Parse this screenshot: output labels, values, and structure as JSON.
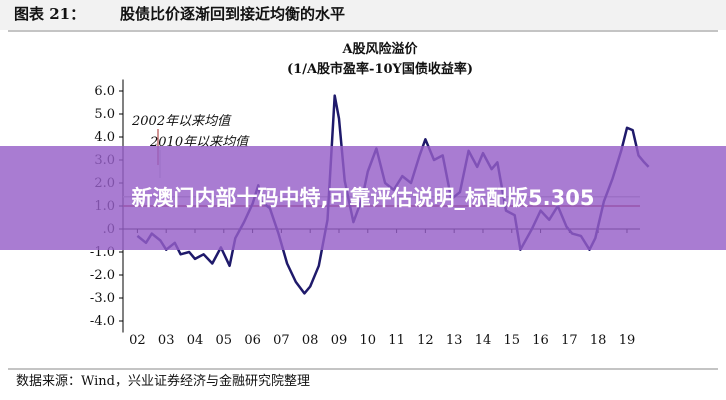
{
  "header": {
    "figure_label": "图表 21：",
    "figure_title": "股债比价逐渐回到接近均衡的水平"
  },
  "footer": {
    "source": "数据来源：Wind，兴业证券经济与金融研究院整理"
  },
  "overlay": {
    "text": "新澳门内部十码中特,可靠评估说明_标配版5.305"
  },
  "chart_data": {
    "type": "line",
    "title": "A股风险溢价",
    "subtitle": "(1/A股市盈率-10Y国债收益率)",
    "x": [
      2002.0,
      2002.3,
      2002.5,
      2002.8,
      2003.0,
      2003.3,
      2003.5,
      2003.8,
      2004.0,
      2004.3,
      2004.6,
      2004.9,
      2005.2,
      2005.4,
      2005.7,
      2006.0,
      2006.2,
      2006.3,
      2006.6,
      2006.9,
      2007.2,
      2007.5,
      2007.8,
      2008.0,
      2008.3,
      2008.6,
      2008.85,
      2009.0,
      2009.2,
      2009.5,
      2009.8,
      2010.0,
      2010.3,
      2010.6,
      2010.9,
      2011.2,
      2011.5,
      2011.8,
      2012.0,
      2012.3,
      2012.6,
      2012.9,
      2013.2,
      2013.5,
      2013.8,
      2014.0,
      2014.3,
      2014.5,
      2014.8,
      2015.1,
      2015.3,
      2015.7,
      2016.0,
      2016.3,
      2016.6,
      2016.9,
      2017.1,
      2017.4,
      2017.7,
      2017.9,
      2018.2,
      2018.5,
      2018.8,
      2019.0,
      2019.2,
      2019.4,
      2019.6,
      2019.75
    ],
    "series": [
      {
        "name": "A股风险溢价",
        "color": "#1f1a6b",
        "values": [
          -0.3,
          -0.6,
          -0.2,
          -0.5,
          -0.9,
          -0.6,
          -1.1,
          -1.0,
          -1.3,
          -1.1,
          -1.5,
          -0.8,
          -1.6,
          -0.4,
          0.3,
          1.1,
          1.9,
          1.2,
          0.9,
          -0.2,
          -1.5,
          -2.3,
          -2.8,
          -2.5,
          -1.6,
          0.4,
          5.8,
          4.8,
          2.1,
          0.3,
          1.3,
          2.5,
          3.5,
          2.0,
          1.7,
          2.3,
          2.0,
          3.2,
          3.9,
          3.0,
          3.2,
          1.3,
          1.6,
          3.4,
          2.7,
          3.3,
          2.6,
          2.9,
          0.8,
          0.6,
          -0.9,
          0.0,
          0.8,
          0.4,
          1.0,
          0.1,
          -0.2,
          -0.3,
          -0.9,
          -0.4,
          1.2,
          2.2,
          3.4,
          4.4,
          4.3,
          3.2,
          2.9,
          2.7
        ]
      }
    ],
    "reference_lines": [
      {
        "name": "2002年以来均值",
        "value": 1.0,
        "color": "#a0282a"
      },
      {
        "name": "2010年以来均值",
        "value": 1.4,
        "color": "#b5b5b5"
      }
    ],
    "xlim": [
      2001.5,
      2019.8
    ],
    "xticks": [
      {
        "value": 2002,
        "label": "02"
      },
      {
        "value": 2003,
        "label": "03"
      },
      {
        "value": 2004,
        "label": "04"
      },
      {
        "value": 2005,
        "label": "05"
      },
      {
        "value": 2006,
        "label": "06"
      },
      {
        "value": 2007,
        "label": "07"
      },
      {
        "value": 2008,
        "label": "08"
      },
      {
        "value": 2009,
        "label": "09"
      },
      {
        "value": 2010,
        "label": "10"
      },
      {
        "value": 2011,
        "label": "11"
      },
      {
        "value": 2012,
        "label": "12"
      },
      {
        "value": 2013,
        "label": "13"
      },
      {
        "value": 2014,
        "label": "14"
      },
      {
        "value": 2015,
        "label": "15"
      },
      {
        "value": 2016,
        "label": "16"
      },
      {
        "value": 2017,
        "label": "17"
      },
      {
        "value": 2018,
        "label": "18"
      },
      {
        "value": 2019,
        "label": "19"
      }
    ],
    "ylim": [
      -4.5,
      6.5
    ],
    "yticks": [
      {
        "value": 6,
        "label": "6.0"
      },
      {
        "value": 5,
        "label": "5.0"
      },
      {
        "value": 4,
        "label": "4.0"
      },
      {
        "value": 3,
        "label": "3.0"
      },
      {
        "value": 2,
        "label": "2.0"
      },
      {
        "value": 1,
        "label": "1.0"
      },
      {
        "value": 0,
        "label": ".0"
      },
      {
        "value": -1,
        "label": "-1.0"
      },
      {
        "value": -2,
        "label": "-2.0"
      },
      {
        "value": -3,
        "label": "-3.0"
      },
      {
        "value": -4,
        "label": "-4.0"
      }
    ]
  }
}
